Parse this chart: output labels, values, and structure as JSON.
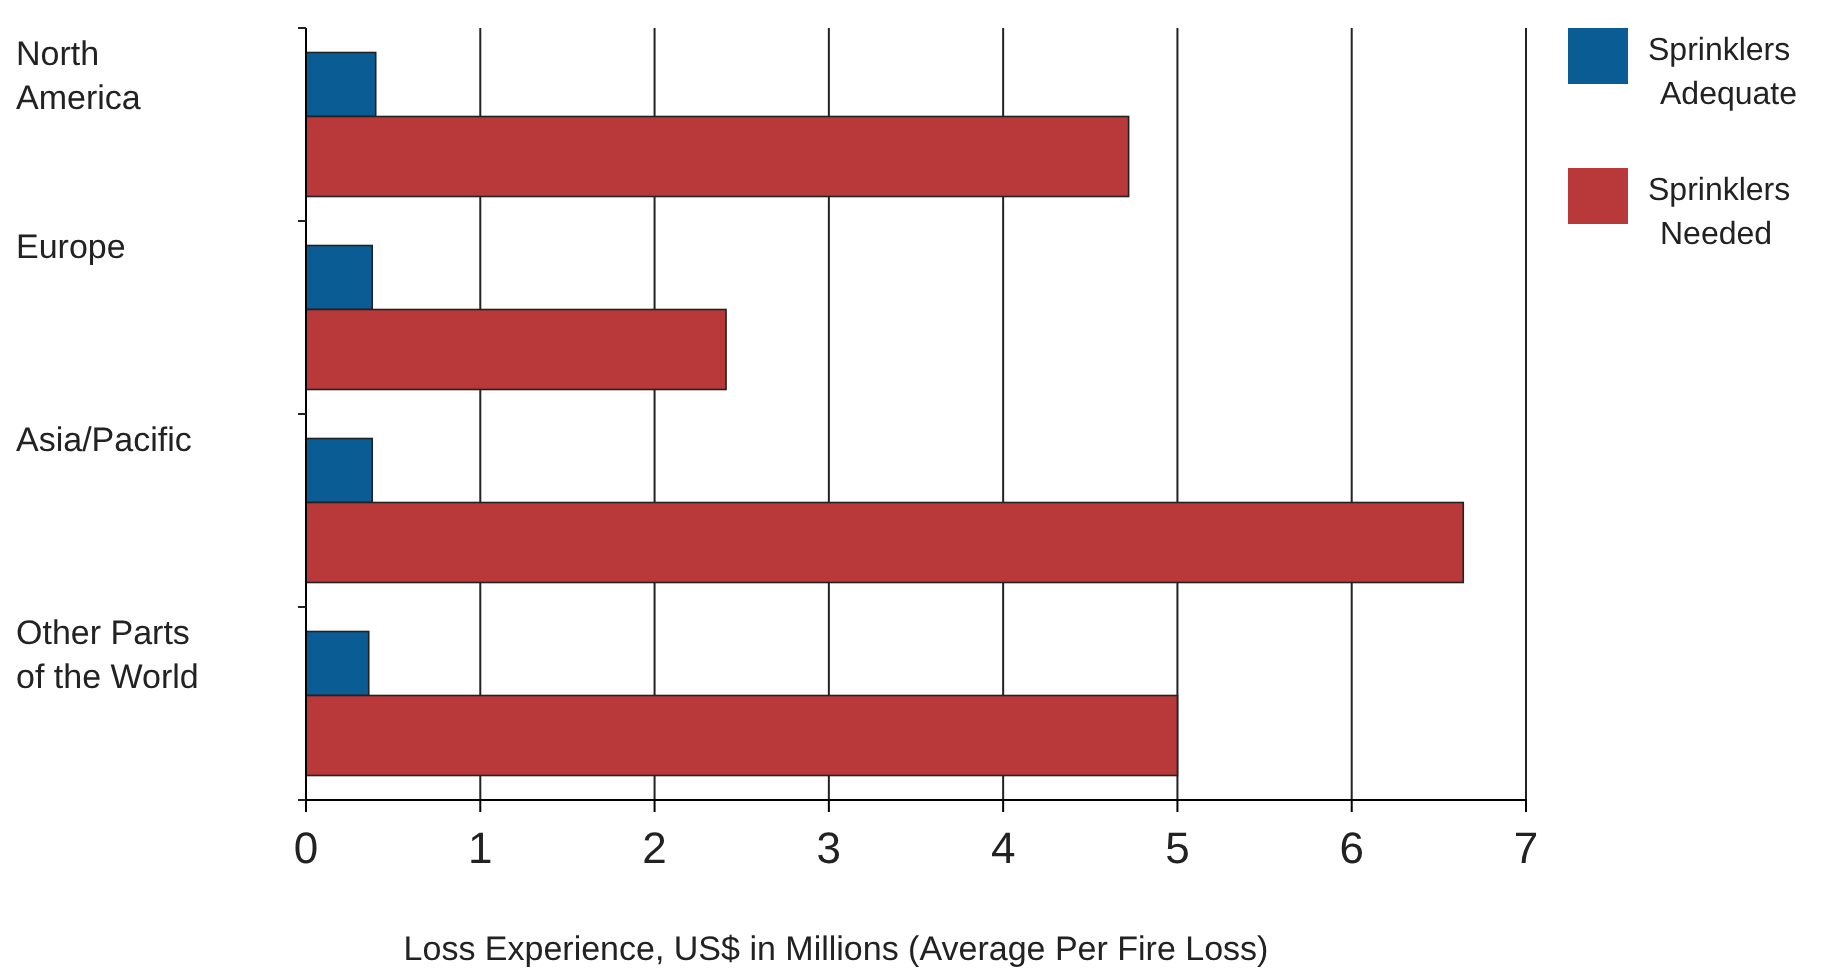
{
  "chart_data": {
    "type": "bar",
    "orientation": "horizontal",
    "xlabel": "Loss Experience, US$ in Millions (Average Per Fire Loss)",
    "categories": [
      "North\nAmerica",
      "Europe",
      "Asia/Pacific",
      "Other Parts\nof the World"
    ],
    "series": [
      {
        "name": "Sprinklers Adequate",
        "color": "#0a5c94",
        "values": [
          0.4,
          0.38,
          0.38,
          0.36
        ]
      },
      {
        "name": "Sprinklers Needed",
        "color": "#b9383a",
        "values": [
          4.72,
          2.41,
          6.64,
          5.0
        ]
      }
    ],
    "xlim": [
      0,
      7
    ],
    "xticks": [
      0,
      1,
      2,
      3,
      4,
      5,
      6,
      7
    ],
    "grid": "x",
    "legend": "top right"
  }
}
